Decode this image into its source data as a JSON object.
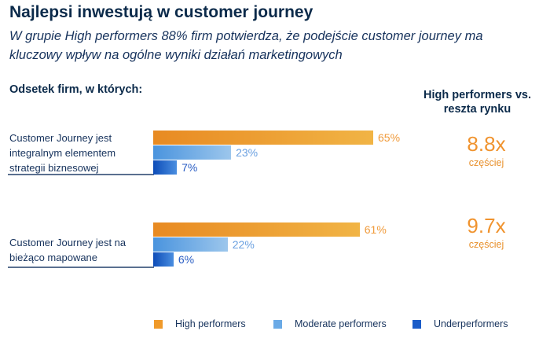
{
  "title": "Najlepsi inwestują w customer journey",
  "subtitle": "W grupie High performers 88% firm potwierdza, że podejście customer journey ma kluczowy wpływ na ogólne wyniki działań marketingowych",
  "section_label": "Odsetek firm, w których:",
  "right_header": "High performers vs. reszta rynku",
  "colors": {
    "high": "#f09a2a",
    "moderate": "#6aaae6",
    "under": "#1a5cc8"
  },
  "chart_data": {
    "type": "bar",
    "orientation": "horizontal",
    "categories": [
      "Customer Journey jest integralnym elementem strategii biznesowej",
      "Customer Journey jest na bieżąco mapowane"
    ],
    "series": [
      {
        "name": "High performers",
        "values": [
          65,
          61
        ],
        "labels": [
          "65%",
          "61%"
        ]
      },
      {
        "name": "Moderate performers",
        "values": [
          23,
          22
        ],
        "labels": [
          "23%",
          "22%"
        ]
      },
      {
        "name": "Underperformers",
        "values": [
          7,
          6
        ],
        "labels": [
          "7%",
          "6%"
        ]
      }
    ],
    "xlim": [
      0,
      100
    ],
    "legend": "bottom",
    "grid": false
  },
  "comparisons": [
    {
      "value": "8.8x",
      "note": "częściej"
    },
    {
      "value": "9.7x",
      "note": "częściej"
    }
  ]
}
